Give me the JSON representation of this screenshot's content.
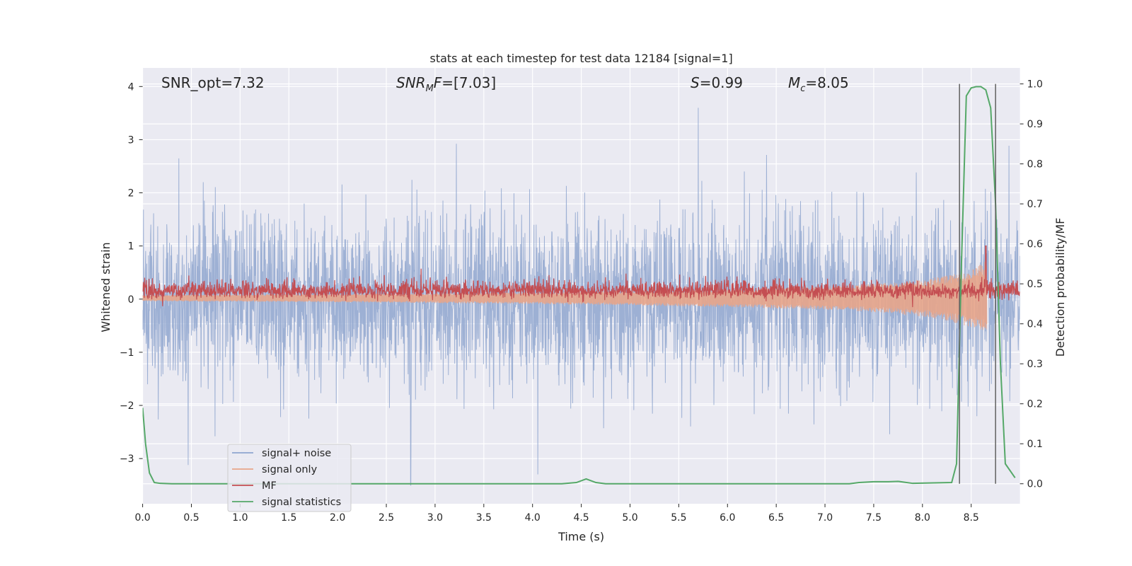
{
  "chart_data": {
    "type": "line",
    "title": "stats at each timestep for test data 12184 [signal=1]",
    "xlabel": "Time (s)",
    "ylabel": "Whitened strain",
    "ylabel_right": "Detection probability/MF",
    "xlim": [
      0.0,
      9.0
    ],
    "ylim": [
      -3.85,
      4.35
    ],
    "ylim_right": [
      -0.05,
      1.04
    ],
    "x_ticks": [
      "0.0",
      "0.5",
      "1.0",
      "1.5",
      "2.0",
      "2.5",
      "3.0",
      "3.5",
      "4.0",
      "4.5",
      "5.0",
      "5.5",
      "6.0",
      "6.5",
      "7.0",
      "7.5",
      "8.0",
      "8.5"
    ],
    "y_ticks": [
      "4",
      "3",
      "2",
      "1",
      "0",
      "−1",
      "−2",
      "−3"
    ],
    "y_right_ticks": [
      "1.0",
      "0.9",
      "0.8",
      "0.7",
      "0.6",
      "0.5",
      "0.4",
      "0.3",
      "0.2",
      "0.1",
      "0.0"
    ],
    "grid": true,
    "legend_position": "lower-left",
    "annotations": {
      "snr_opt": "SNR_opt=7.32",
      "snr_mf": "=[7.03]",
      "s_value": "=0.99",
      "mc_value": "=8.05"
    },
    "vertical_lines_x": [
      8.38,
      8.75
    ],
    "series": [
      {
        "name": "signal+ noise",
        "color": "#8fa6cf",
        "axis": "left",
        "noise_std": 0.82,
        "notable_peaks": [
          {
            "x": 5.7,
            "y": 4.0
          },
          {
            "x": 2.75,
            "y": -3.55
          }
        ]
      },
      {
        "name": "signal only",
        "color": "#e8a58a",
        "axis": "left",
        "envelope": [
          [
            0.0,
            0.06
          ],
          [
            2.0,
            0.08
          ],
          [
            4.0,
            0.11
          ],
          [
            6.0,
            0.17
          ],
          [
            7.0,
            0.22
          ],
          [
            7.5,
            0.27
          ],
          [
            8.0,
            0.35
          ],
          [
            8.3,
            0.45
          ],
          [
            8.5,
            0.55
          ],
          [
            8.65,
            0.7
          ]
        ]
      },
      {
        "name": "MF",
        "color": "#c44e52",
        "axis": "left",
        "baseline": 0.15,
        "spikes": [
          {
            "x": 8.65,
            "y": 1.0
          }
        ]
      },
      {
        "name": "signal statistics",
        "color": "#55a868",
        "axis": "right",
        "x": [
          0.0,
          0.03,
          0.07,
          0.12,
          0.18,
          0.3,
          4.3,
          4.45,
          4.55,
          4.65,
          4.75,
          7.25,
          7.35,
          7.5,
          7.65,
          7.75,
          7.9,
          8.3,
          8.35,
          8.4,
          8.45,
          8.5,
          8.55,
          8.6,
          8.65,
          8.7,
          8.75,
          8.8,
          8.85,
          8.95
        ],
        "y": [
          0.19,
          0.1,
          0.027,
          0.003,
          0.001,
          0.0,
          0.0,
          0.003,
          0.012,
          0.003,
          0.0,
          0.0,
          0.003,
          0.005,
          0.005,
          0.006,
          0.001,
          0.003,
          0.05,
          0.55,
          0.97,
          0.99,
          0.993,
          0.993,
          0.985,
          0.94,
          0.7,
          0.3,
          0.05,
          0.015
        ]
      }
    ]
  }
}
